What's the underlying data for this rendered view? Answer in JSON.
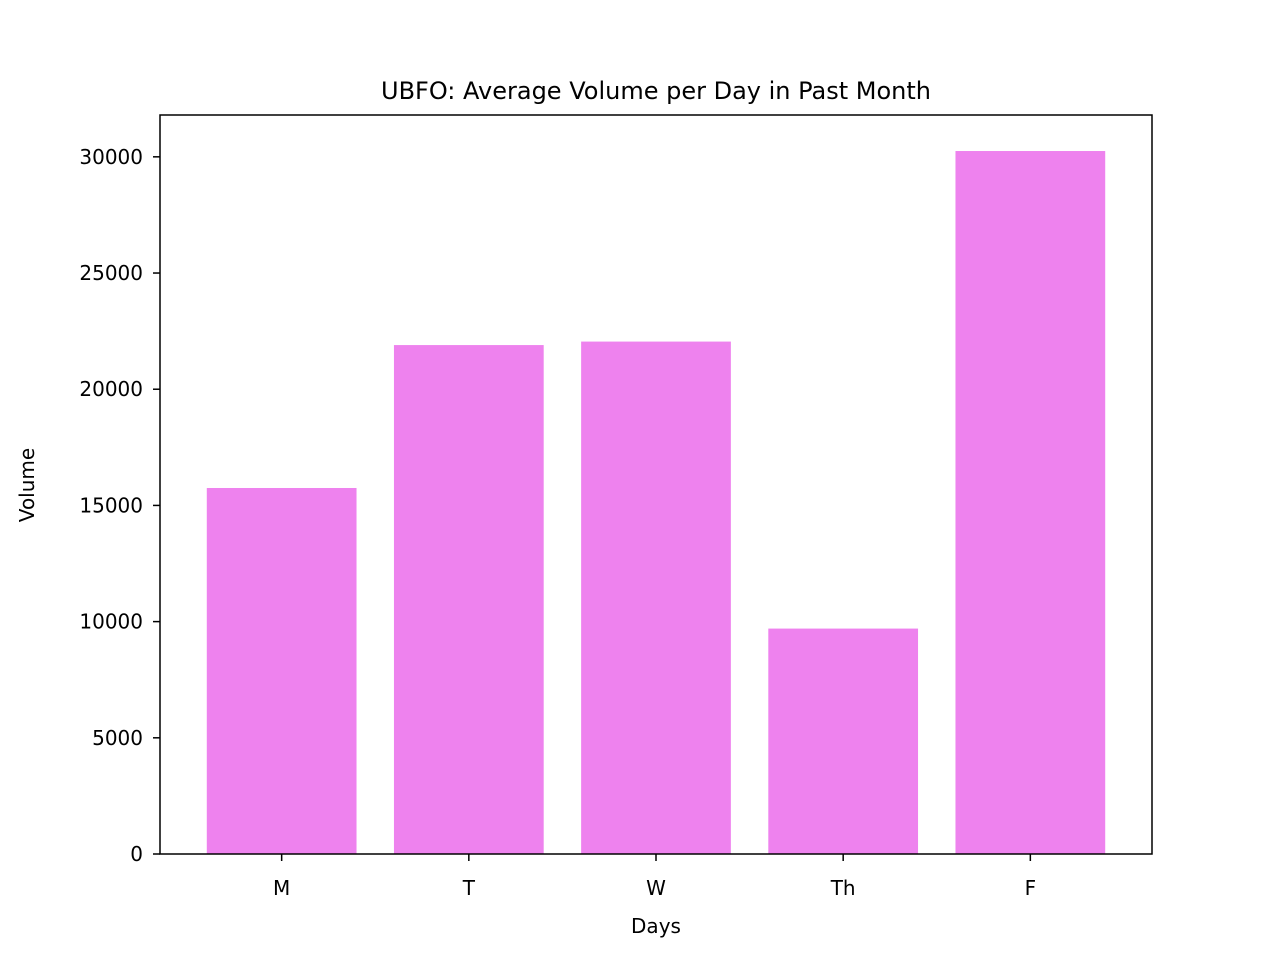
{
  "chart_data": {
    "type": "bar",
    "title": "UBFO: Average Volume per Day in Past Month",
    "xlabel": "Days",
    "ylabel": "Volume",
    "categories": [
      "M",
      "T",
      "W",
      "Th",
      "F"
    ],
    "values": [
      15750,
      21900,
      22050,
      9700,
      30250
    ],
    "ylim": [
      0,
      31800
    ],
    "yticks": [
      0,
      5000,
      10000,
      15000,
      20000,
      25000,
      30000
    ],
    "grid": false,
    "legend": "none",
    "colors": {
      "bar": "#ee82ee",
      "axis": "#000000",
      "background": "#ffffff"
    }
  }
}
